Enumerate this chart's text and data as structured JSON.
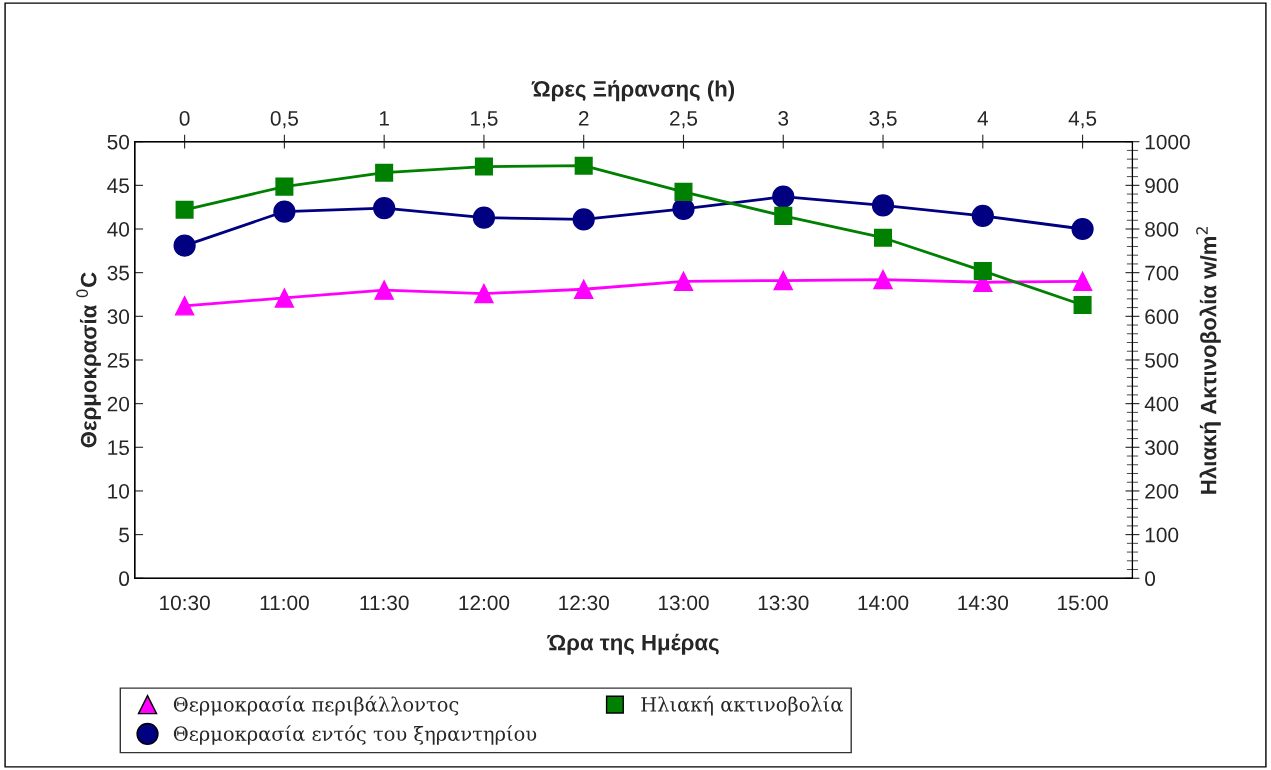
{
  "chart_data": {
    "type": "line",
    "x2label": "Ώρες Ξήρανσης (h)",
    "xlabel": "Ώρα της Ημέρας",
    "ylabel": "Θερμοκρασία $^{0}$C",
    "y2label": "Ηλιακή Ακτινοβολία w/m$^{2}$",
    "categories": [
      "10:30",
      "11:00",
      "11:30",
      "12:00",
      "12:30",
      "13:00",
      "13:30",
      "14:00",
      "14:30",
      "15:00"
    ],
    "ylim": [
      0,
      50
    ],
    "yticks": [
      0,
      5,
      10,
      15,
      20,
      25,
      30,
      35,
      40,
      45,
      50
    ],
    "y2lim": [
      0,
      1000
    ],
    "y2ticks": [
      0,
      100,
      200,
      300,
      400,
      500,
      600,
      700,
      800,
      900,
      1000
    ],
    "x2lim": [
      -0.25,
      4.75
    ],
    "x2ticks": [
      0,
      {
        "value": 0.5,
        "label": "0,5"
      },
      1,
      {
        "value": 1.5,
        "label": "1,5"
      },
      2,
      {
        "value": 2.5,
        "label": "2,5"
      },
      3,
      {
        "value": 3.5,
        "label": "3,5"
      },
      4,
      {
        "value": 4.5,
        "label": "4,5"
      }
    ],
    "grid": false,
    "legend": "bottom",
    "series": [
      {
        "name": "Θερμοκρασία περιβάλλοντος",
        "color": "#ff00ff",
        "marker": "triangle",
        "values": [
          31.2,
          32.1,
          33.0,
          32.6,
          33.1,
          34.0,
          34.1,
          34.2,
          33.9,
          34.0
        ]
      },
      {
        "name": "Θερμοκρασία εντός του ξηραντηρίου",
        "color": "#000080",
        "marker": "circle",
        "values": [
          38.1,
          42.0,
          42.4,
          41.3,
          41.1,
          42.3,
          43.7,
          42.7,
          41.5,
          40.0
        ]
      },
      {
        "name": "Ηλιακή ακτινοβολία",
        "color": "#008000",
        "marker": "square",
        "axis": "y2",
        "values": [
          844,
          897,
          929,
          943,
          945,
          885,
          830,
          780,
          704,
          626
        ]
      }
    ]
  }
}
